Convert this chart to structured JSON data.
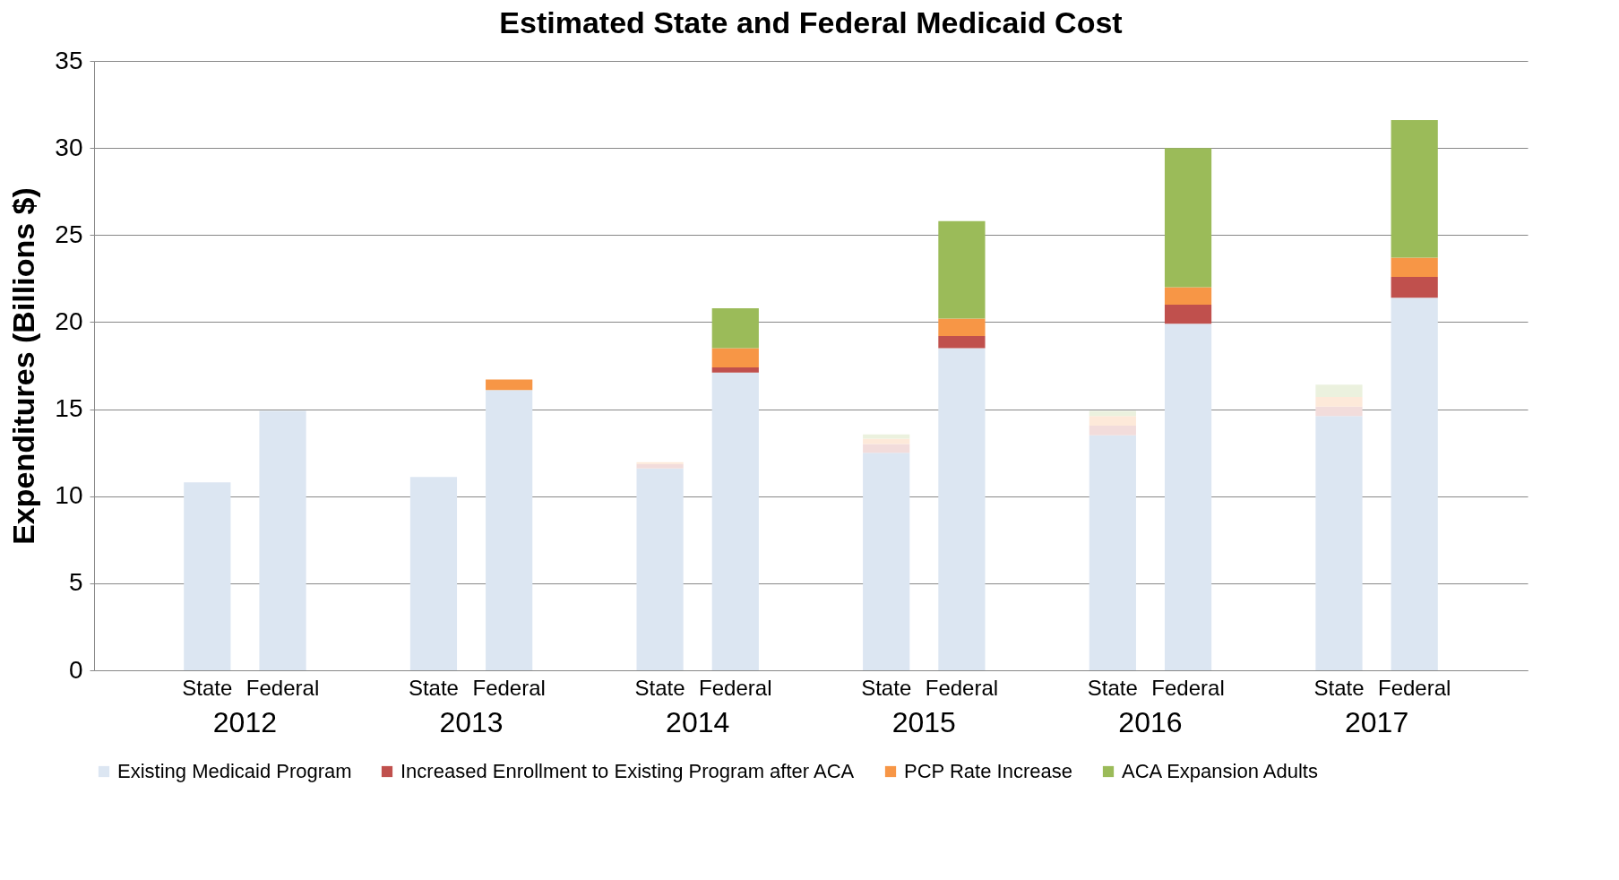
{
  "chart_data": {
    "type": "bar",
    "title": "Estimated State and Federal Medicaid Cost",
    "ylabel": "Expenditures (Billions $)",
    "categories": [
      "State",
      "Federal",
      "State",
      "Federal",
      "State",
      "Federal",
      "State",
      "Federal",
      "State",
      "Federal",
      "State",
      "Federal"
    ],
    "annotations": [
      "2012",
      "2013",
      "2014",
      "2015",
      "2016",
      "2017"
    ],
    "stacked": true,
    "ylim": [
      0,
      35
    ],
    "yticks": [
      0,
      5,
      10,
      15,
      20,
      25,
      30,
      35
    ],
    "grid": "y",
    "legend": "bottom",
    "series": [
      {
        "name": "Existing Medicaid Program",
        "color": "#dce6f2",
        "colors": [
          "#dce6f2",
          "#dce6f2",
          "#dce6f2",
          "#dce6f2",
          "#dce6f2",
          "#dce6f2",
          "#dce6f2",
          "#dce6f2",
          "#dce6f2",
          "#dce6f2",
          "#dce6f2",
          "#dce6f2"
        ],
        "values": [
          10.8,
          14.9,
          11.1,
          16.1,
          11.6,
          17.1,
          12.5,
          18.5,
          13.5,
          19.9,
          14.6,
          21.4
        ]
      },
      {
        "name": "Increased Enrollment to Existing Program after ACA",
        "color": "#c0504d",
        "colors": [
          null,
          null,
          null,
          null,
          "#f2dcdb",
          "#c0504d",
          "#f2dcdb",
          "#c0504d",
          "#f2dcdb",
          "#c0504d",
          "#f2dcdb",
          "#c0504d"
        ],
        "values": [
          null,
          null,
          null,
          null,
          0.25,
          0.3,
          0.5,
          0.7,
          0.55,
          1.1,
          0.55,
          1.2
        ]
      },
      {
        "name": "PCP Rate Increase",
        "color": "#f79646",
        "colors": [
          null,
          null,
          null,
          "#f79646",
          "#fde9d9",
          "#f79646",
          "#fde9d9",
          "#f79646",
          "#fde9d9",
          "#f79646",
          "#fde9d9",
          "#f79646"
        ],
        "values": [
          null,
          null,
          null,
          0.6,
          0.1,
          1.1,
          0.3,
          1.0,
          0.55,
          1.0,
          0.55,
          1.1
        ]
      },
      {
        "name": "ACA Expansion Adults",
        "color": "#9bbb59",
        "colors": [
          null,
          null,
          null,
          null,
          null,
          "#9bbb59",
          "#ebf1de",
          "#9bbb59",
          "#ebf1de",
          "#9bbb59",
          "#ebf1de",
          "#9bbb59"
        ],
        "values": [
          null,
          null,
          null,
          null,
          null,
          2.3,
          0.25,
          5.6,
          0.3,
          8.0,
          0.7,
          7.9
        ]
      }
    ]
  }
}
